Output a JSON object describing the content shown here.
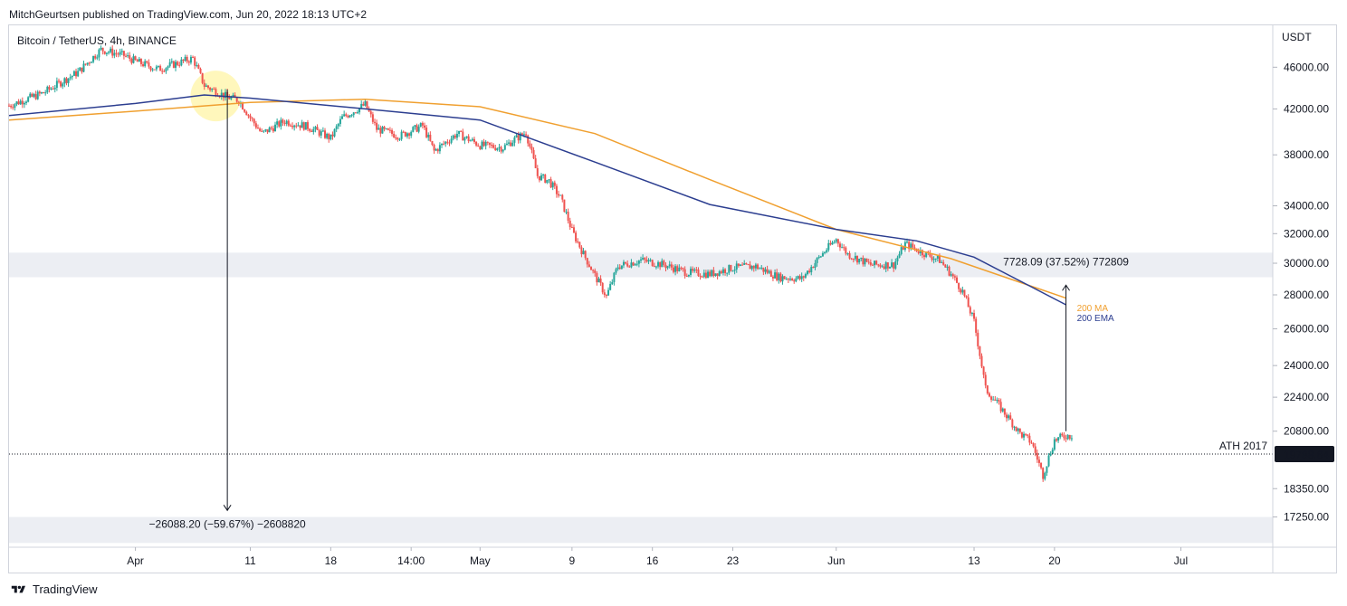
{
  "publisher": "MitchGeurtsen published on TradingView.com, Jun 20, 2022 18:13 UTC+2",
  "symbol": "Bitcoin / TetherUS, 4h, BINANCE",
  "footer": "TradingView",
  "colors": {
    "up": "#26a69a",
    "down": "#ef5350",
    "ma200": "#f0a030",
    "ema200": "#2c3e90",
    "zone": "#eceef3",
    "highlight": "#fff6b0"
  },
  "chart_data": {
    "type": "candlestick",
    "title": "Bitcoin / TetherUS, 4h, BINANCE",
    "y_axis_label": "USDT",
    "y_scale": "log",
    "y_ticks": [
      {
        "value": 46000,
        "label": "46000.00"
      },
      {
        "value": 42000,
        "label": "42000.00"
      },
      {
        "value": 38000,
        "label": "38000.00"
      },
      {
        "value": 34000,
        "label": "34000.00"
      },
      {
        "value": 32000,
        "label": "32000.00"
      },
      {
        "value": 30000,
        "label": "30000.00"
      },
      {
        "value": 28000,
        "label": "28000.00"
      },
      {
        "value": 26000,
        "label": "26000.00"
      },
      {
        "value": 24000,
        "label": "24000.00"
      },
      {
        "value": 22400,
        "label": "22400.00"
      },
      {
        "value": 20800,
        "label": "20800.00"
      },
      {
        "value": 18350,
        "label": "18350.00"
      },
      {
        "value": 17250,
        "label": "17250.00"
      }
    ],
    "x_ticks": [
      {
        "date": "2022-04-01",
        "label": "Apr"
      },
      {
        "date": "2022-04-11",
        "label": "11"
      },
      {
        "date": "2022-04-18",
        "label": "18"
      },
      {
        "date": "2022-04-25",
        "label": "14:00"
      },
      {
        "date": "2022-05-01",
        "label": "May"
      },
      {
        "date": "2022-05-09",
        "label": "9"
      },
      {
        "date": "2022-05-16",
        "label": "16"
      },
      {
        "date": "2022-05-23",
        "label": "23"
      },
      {
        "date": "2022-06-01",
        "label": "Jun"
      },
      {
        "date": "2022-06-13",
        "label": "13"
      },
      {
        "date": "2022-06-20",
        "label": "20"
      },
      {
        "date": "2022-07-01",
        "label": "Jul"
      }
    ],
    "price_path": [
      [
        "2022-03-21",
        42300
      ],
      [
        "2022-03-24",
        43500
      ],
      [
        "2022-03-27",
        45500
      ],
      [
        "2022-03-29",
        47800
      ],
      [
        "2022-03-31",
        47200
      ],
      [
        "2022-04-01",
        46600
      ],
      [
        "2022-04-03",
        45800
      ],
      [
        "2022-04-06",
        46900
      ],
      [
        "2022-04-07",
        44200
      ],
      [
        "2022-04-09",
        43100
      ],
      [
        "2022-04-10",
        42800
      ],
      [
        "2022-04-11",
        41200
      ],
      [
        "2022-04-12",
        39800
      ],
      [
        "2022-04-14",
        40900
      ],
      [
        "2022-04-16",
        40400
      ],
      [
        "2022-04-18",
        39400
      ],
      [
        "2022-04-19",
        41200
      ],
      [
        "2022-04-21",
        42400
      ],
      [
        "2022-04-22",
        40200
      ],
      [
        "2022-04-24",
        39600
      ],
      [
        "2022-04-26",
        40500
      ],
      [
        "2022-04-27",
        38300
      ],
      [
        "2022-04-29",
        39800
      ],
      [
        "2022-05-01",
        38800
      ],
      [
        "2022-05-03",
        38600
      ],
      [
        "2022-05-04",
        39300
      ],
      [
        "2022-05-05",
        39900
      ],
      [
        "2022-05-06",
        36300
      ],
      [
        "2022-05-07",
        35900
      ],
      [
        "2022-05-08",
        34600
      ],
      [
        "2022-05-09",
        32200
      ],
      [
        "2022-05-10",
        30600
      ],
      [
        "2022-05-11",
        29200
      ],
      [
        "2022-05-12",
        27900
      ],
      [
        "2022-05-13",
        29800
      ],
      [
        "2022-05-15",
        30200
      ],
      [
        "2022-05-17",
        29900
      ],
      [
        "2022-05-19",
        29400
      ],
      [
        "2022-05-21",
        29300
      ],
      [
        "2022-05-23",
        29700
      ],
      [
        "2022-05-25",
        29800
      ],
      [
        "2022-05-27",
        29100
      ],
      [
        "2022-05-29",
        29000
      ],
      [
        "2022-05-31",
        30800
      ],
      [
        "2022-06-01",
        31600
      ],
      [
        "2022-06-02",
        30600
      ],
      [
        "2022-06-04",
        29900
      ],
      [
        "2022-06-06",
        29900
      ],
      [
        "2022-06-07",
        31300
      ],
      [
        "2022-06-08",
        30900
      ],
      [
        "2022-06-10",
        30200
      ],
      [
        "2022-06-11",
        29300
      ],
      [
        "2022-06-12",
        28200
      ],
      [
        "2022-06-13",
        26400
      ],
      [
        "2022-06-14",
        22800
      ],
      [
        "2022-06-15",
        22100
      ],
      [
        "2022-06-16",
        21400
      ],
      [
        "2022-06-17",
        20700
      ],
      [
        "2022-06-18",
        20300
      ],
      [
        "2022-06-19",
        18900
      ],
      [
        "2022-06-20",
        20400
      ],
      [
        "2022-06-21",
        20600
      ]
    ],
    "series": [
      {
        "name": "200 MA",
        "points": [
          [
            "2022-03-21",
            41000
          ],
          [
            "2022-04-01",
            41800
          ],
          [
            "2022-04-11",
            42600
          ],
          [
            "2022-04-21",
            42900
          ],
          [
            "2022-05-01",
            42200
          ],
          [
            "2022-05-11",
            39800
          ],
          [
            "2022-05-21",
            36000
          ],
          [
            "2022-06-01",
            32300
          ],
          [
            "2022-06-11",
            30300
          ],
          [
            "2022-06-21",
            27800
          ]
        ]
      },
      {
        "name": "200 EMA",
        "points": [
          [
            "2022-03-21",
            41400
          ],
          [
            "2022-04-01",
            42500
          ],
          [
            "2022-04-07",
            43300
          ],
          [
            "2022-04-11",
            43000
          ],
          [
            "2022-04-21",
            42000
          ],
          [
            "2022-05-01",
            41000
          ],
          [
            "2022-05-11",
            37400
          ],
          [
            "2022-05-21",
            34100
          ],
          [
            "2022-06-01",
            32300
          ],
          [
            "2022-06-08",
            31500
          ],
          [
            "2022-06-13",
            30400
          ],
          [
            "2022-06-21",
            27400
          ]
        ]
      }
    ],
    "zones": [
      {
        "from": 29100,
        "to": 30700
      },
      {
        "from": 16300,
        "to": 17250
      }
    ],
    "horizontal_line": {
      "value": 19788.64,
      "label": "ATH 2017",
      "price_label": "19788.64"
    },
    "measure_down": {
      "date": "2022-04-09",
      "from": 43800,
      "to": 17500,
      "label": "−26088.20 (−59.67%) −2608820"
    },
    "measure_up": {
      "date": "2022-06-21",
      "from": 20800,
      "to": 28600,
      "label": "7728.09 (37.52%) 772809"
    },
    "highlight_circle": {
      "date": "2022-04-08",
      "value": 43200
    },
    "legend": [
      "200 MA",
      "200 EMA"
    ],
    "legend_position": "right"
  }
}
